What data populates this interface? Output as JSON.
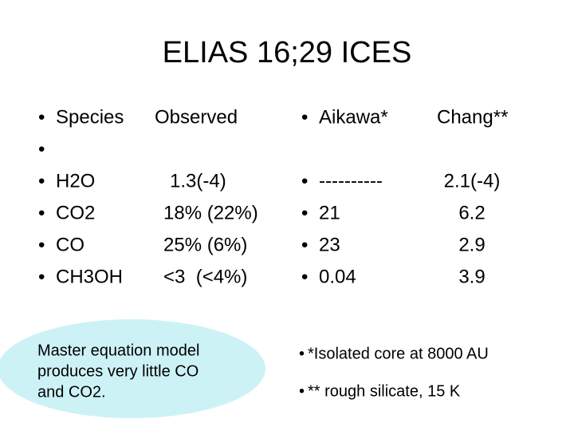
{
  "title": "ELIAS 16;29 ICES",
  "left": {
    "header": [
      "Species",
      "Observed"
    ],
    "rows": [
      [
        "H2O",
        "1.3(-4)"
      ],
      [
        "CO2",
        "18% (22%)"
      ],
      [
        "CO",
        "25% (6%)"
      ],
      [
        "CH3OH",
        "<3  (<4%)"
      ]
    ]
  },
  "right": {
    "header": [
      "Aikawa*",
      "Chang**"
    ],
    "rows": [
      [
        "----------",
        "2.1(-4)"
      ],
      [
        "21",
        "6.2"
      ],
      [
        "23",
        "2.9"
      ],
      [
        "0.04",
        "3.9"
      ]
    ]
  },
  "note": [
    "Master equation model",
    "produces very little CO",
    "and CO2."
  ],
  "footnotes": [
    "*Isolated core at 8000 AU",
    "** rough silicate, 15 K"
  ]
}
